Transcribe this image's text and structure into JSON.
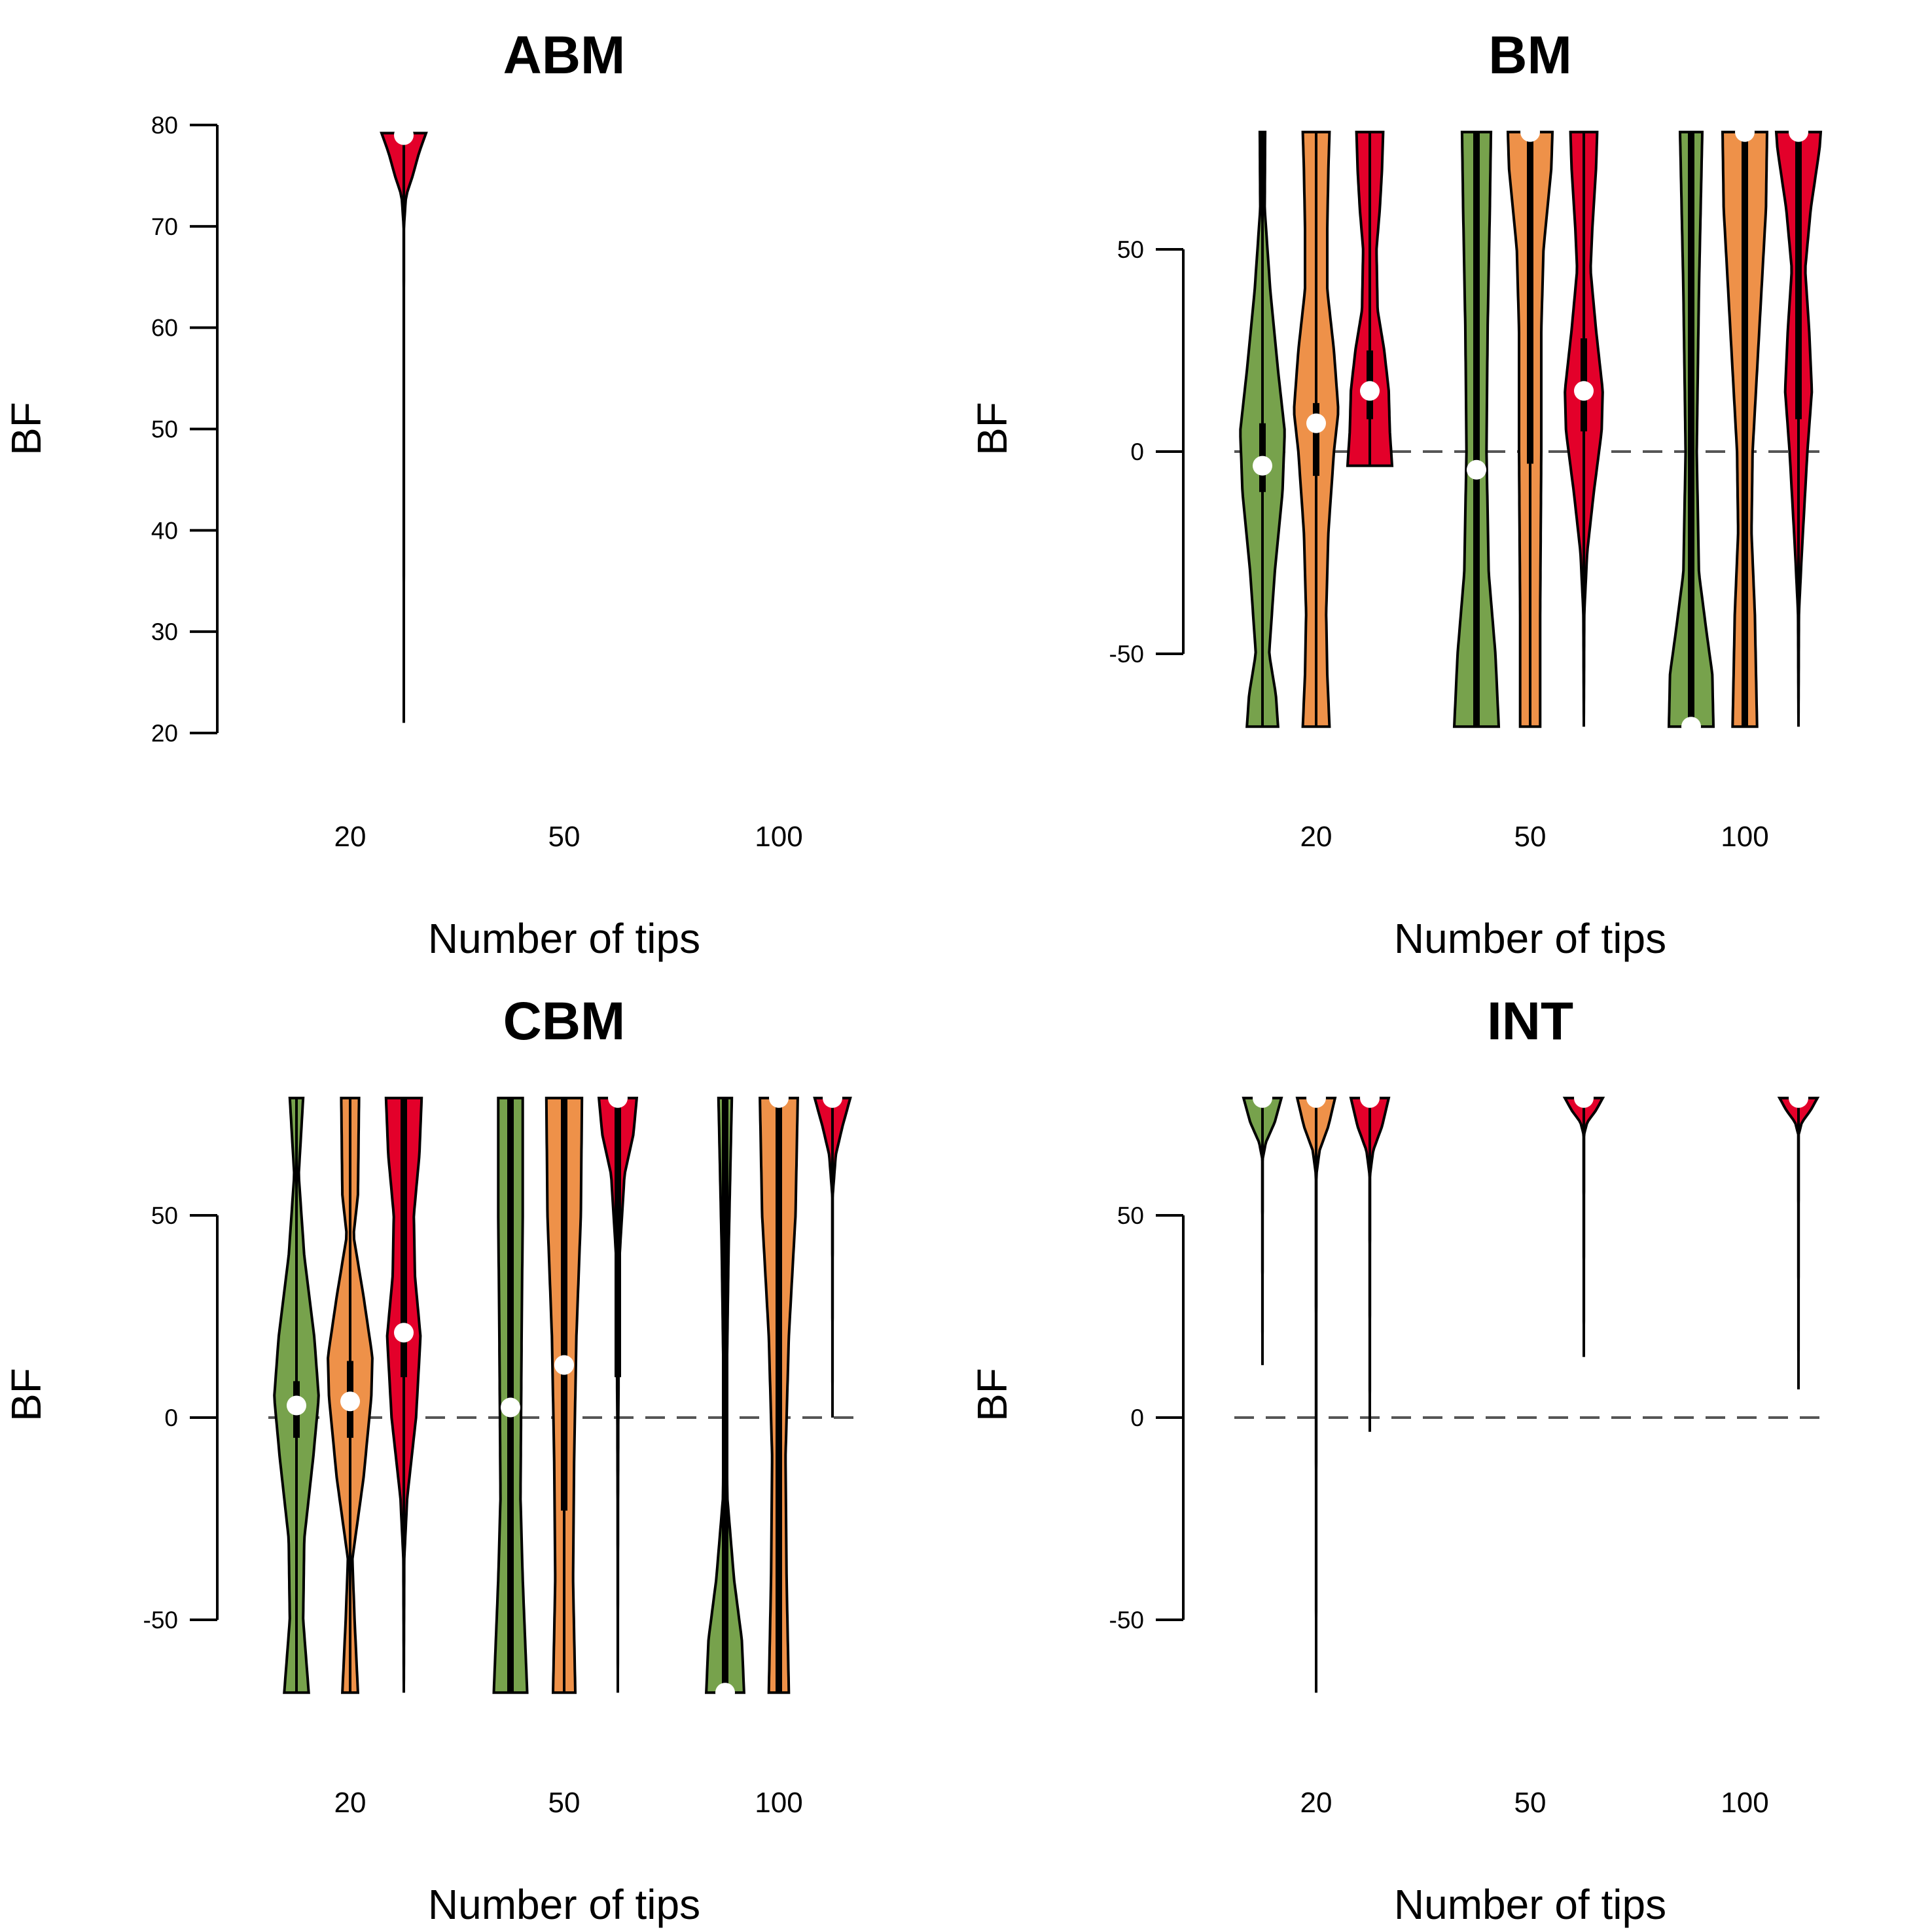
{
  "colors": {
    "tips_20": "#77a24c",
    "tips_50": "#ee9149",
    "tips_100": "#e3002a",
    "median_marker": "#ffffff",
    "reference_line": "#555555"
  },
  "chart_data": [
    {
      "type": "violin",
      "title": "ABM",
      "xlabel": "Number of tips",
      "ylabel": "BF",
      "categories": [
        "20",
        "50",
        "100"
      ],
      "ylim": [
        20,
        80
      ],
      "yticks": [
        "20",
        "30",
        "40",
        "50",
        "60",
        "70",
        "80"
      ],
      "reference_line": null,
      "groups": [
        {
          "category": "20",
          "color_key": "tips_100",
          "min": 21,
          "max": 79.2,
          "q1": 79.0,
          "q3": 79.2,
          "median": 79.0,
          "density": [
            [
              21,
              0
            ],
            [
              70,
              0.005
            ],
            [
              73,
              0.1
            ],
            [
              75,
              0.4
            ],
            [
              77,
              0.65
            ],
            [
              78,
              0.8
            ],
            [
              79.2,
              1.0
            ]
          ]
        }
      ]
    },
    {
      "type": "violin",
      "title": "BM",
      "xlabel": "Number of tips",
      "ylabel": "BF",
      "categories": [
        "20",
        "50",
        "100"
      ],
      "ylim": [
        -67,
        80
      ],
      "yticks": [
        "-50",
        "0",
        "50"
      ],
      "reference_line": 0,
      "groups": [
        {
          "category": "20",
          "color_key": "tips_20",
          "min": -68,
          "max": 79,
          "q1": -10,
          "q3": 7,
          "median": -3.5,
          "density": [
            [
              -68,
              0.7
            ],
            [
              -60,
              0.6
            ],
            [
              -50,
              0.3
            ],
            [
              -30,
              0.55
            ],
            [
              -10,
              0.9
            ],
            [
              5,
              1.0
            ],
            [
              20,
              0.7
            ],
            [
              40,
              0.35
            ],
            [
              60,
              0.1
            ],
            [
              79,
              0.12
            ]
          ]
        },
        {
          "category": "20",
          "color_key": "tips_50",
          "min": -68,
          "max": 79,
          "q1": -6,
          "q3": 12,
          "median": 7,
          "density": [
            [
              -68,
              0.6
            ],
            [
              -55,
              0.5
            ],
            [
              -40,
              0.45
            ],
            [
              -20,
              0.55
            ],
            [
              0,
              0.8
            ],
            [
              10,
              1.0
            ],
            [
              25,
              0.8
            ],
            [
              40,
              0.5
            ],
            [
              55,
              0.5
            ],
            [
              70,
              0.55
            ],
            [
              79,
              0.6
            ]
          ]
        },
        {
          "category": "20",
          "color_key": "tips_100",
          "min": -3.5,
          "max": 79,
          "q1": 8,
          "q3": 25,
          "median": 15,
          "density": [
            [
              -3.5,
              1.0
            ],
            [
              5,
              0.9
            ],
            [
              15,
              0.85
            ],
            [
              25,
              0.65
            ],
            [
              35,
              0.35
            ],
            [
              50,
              0.3
            ],
            [
              60,
              0.45
            ],
            [
              70,
              0.55
            ],
            [
              79,
              0.6
            ]
          ]
        },
        {
          "category": "50",
          "color_key": "tips_20",
          "min": -68,
          "max": 79,
          "q1": -68,
          "q3": 79,
          "median": -4.5,
          "density": [
            [
              -68,
              1.0
            ],
            [
              -50,
              0.85
            ],
            [
              -30,
              0.55
            ],
            [
              0,
              0.45
            ],
            [
              30,
              0.5
            ],
            [
              60,
              0.6
            ],
            [
              79,
              0.65
            ]
          ]
        },
        {
          "category": "50",
          "color_key": "tips_50",
          "min": -68,
          "max": 79,
          "q1": -3,
          "q3": 79,
          "median": 79,
          "density": [
            [
              -68,
              0.45
            ],
            [
              -40,
              0.45
            ],
            [
              0,
              0.5
            ],
            [
              30,
              0.5
            ],
            [
              50,
              0.6
            ],
            [
              70,
              0.95
            ],
            [
              79,
              1.0
            ]
          ]
        },
        {
          "category": "50",
          "color_key": "tips_100",
          "min": -68,
          "max": 79,
          "q1": 5,
          "q3": 28,
          "median": 15,
          "density": [
            [
              -68,
              0
            ],
            [
              -40,
              0.02
            ],
            [
              -25,
              0.15
            ],
            [
              -10,
              0.45
            ],
            [
              5,
              0.8
            ],
            [
              15,
              0.85
            ],
            [
              30,
              0.55
            ],
            [
              45,
              0.3
            ],
            [
              55,
              0.38
            ],
            [
              70,
              0.55
            ],
            [
              79,
              0.6
            ]
          ]
        },
        {
          "category": "100",
          "color_key": "tips_20",
          "min": -68,
          "max": 79,
          "q1": -68,
          "q3": 79,
          "median": -68,
          "density": [
            [
              -68,
              1.0
            ],
            [
              -55,
              0.95
            ],
            [
              -45,
              0.7
            ],
            [
              -30,
              0.35
            ],
            [
              0,
              0.25
            ],
            [
              40,
              0.35
            ],
            [
              79,
              0.5
            ]
          ]
        },
        {
          "category": "100",
          "color_key": "tips_50",
          "min": -68,
          "max": 79,
          "q1": -68,
          "q3": 79,
          "median": 79,
          "density": [
            [
              -68,
              0.55
            ],
            [
              -40,
              0.45
            ],
            [
              -20,
              0.3
            ],
            [
              0,
              0.35
            ],
            [
              30,
              0.65
            ],
            [
              60,
              0.95
            ],
            [
              79,
              1.0
            ]
          ]
        },
        {
          "category": "100",
          "color_key": "tips_100",
          "min": -68,
          "max": 79,
          "q1": 8,
          "q3": 79,
          "median": 79,
          "density": [
            [
              -68,
              0
            ],
            [
              -40,
              0.02
            ],
            [
              -25,
              0.15
            ],
            [
              0,
              0.4
            ],
            [
              15,
              0.6
            ],
            [
              30,
              0.48
            ],
            [
              45,
              0.3
            ],
            [
              60,
              0.55
            ],
            [
              75,
              0.95
            ],
            [
              79,
              1.0
            ]
          ]
        }
      ]
    },
    {
      "type": "violin",
      "title": "CBM",
      "xlabel": "Number of tips",
      "ylabel": "BF",
      "categories": [
        "20",
        "50",
        "100"
      ],
      "ylim": [
        -67,
        80
      ],
      "yticks": [
        "-50",
        "0",
        "50"
      ],
      "reference_line": 0,
      "groups": [
        {
          "category": "20",
          "color_key": "tips_20",
          "min": -68,
          "max": 79,
          "q1": -5,
          "q3": 9,
          "median": 3,
          "density": [
            [
              -68,
              0.55
            ],
            [
              -50,
              0.3
            ],
            [
              -30,
              0.35
            ],
            [
              -10,
              0.75
            ],
            [
              5,
              1.0
            ],
            [
              20,
              0.8
            ],
            [
              40,
              0.35
            ],
            [
              60,
              0.1
            ],
            [
              79,
              0.3
            ]
          ]
        },
        {
          "category": "20",
          "color_key": "tips_50",
          "min": -68,
          "max": 79,
          "q1": -5,
          "q3": 14,
          "median": 4,
          "density": [
            [
              -68,
              0.35
            ],
            [
              -50,
              0.2
            ],
            [
              -35,
              0.1
            ],
            [
              -15,
              0.6
            ],
            [
              5,
              0.95
            ],
            [
              15,
              1.0
            ],
            [
              30,
              0.6
            ],
            [
              45,
              0.15
            ],
            [
              55,
              0.35
            ],
            [
              79,
              0.4
            ]
          ]
        },
        {
          "category": "20",
          "color_key": "tips_100",
          "min": -68,
          "max": 79,
          "q1": 10,
          "q3": 79,
          "median": 21,
          "density": [
            [
              -68,
              0
            ],
            [
              -35,
              0.02
            ],
            [
              -20,
              0.15
            ],
            [
              0,
              0.55
            ],
            [
              20,
              0.75
            ],
            [
              35,
              0.5
            ],
            [
              50,
              0.45
            ],
            [
              65,
              0.7
            ],
            [
              79,
              0.8
            ]
          ]
        },
        {
          "category": "50",
          "color_key": "tips_20",
          "min": -68,
          "max": 79,
          "q1": -68,
          "q3": 79,
          "median": 2.5,
          "density": [
            [
              -68,
              0.75
            ],
            [
              -40,
              0.55
            ],
            [
              -20,
              0.45
            ],
            [
              20,
              0.5
            ],
            [
              50,
              0.55
            ],
            [
              79,
              0.55
            ]
          ]
        },
        {
          "category": "50",
          "color_key": "tips_50",
          "min": -68,
          "max": 79,
          "q1": -23,
          "q3": 79,
          "median": 13,
          "density": [
            [
              -68,
              0.5
            ],
            [
              -40,
              0.4
            ],
            [
              -10,
              0.45
            ],
            [
              20,
              0.55
            ],
            [
              50,
              0.75
            ],
            [
              79,
              0.8
            ]
          ]
        },
        {
          "category": "50",
          "color_key": "tips_100",
          "min": -68,
          "max": 79,
          "q1": 10,
          "q3": 79,
          "median": 79,
          "density": [
            [
              -68,
              0
            ],
            [
              -20,
              0.01
            ],
            [
              0,
              0.02
            ],
            [
              20,
              0.05
            ],
            [
              40,
              0.08
            ],
            [
              60,
              0.3
            ],
            [
              70,
              0.7
            ],
            [
              79,
              0.85
            ]
          ]
        },
        {
          "category": "100",
          "color_key": "tips_20",
          "min": -68,
          "max": 79,
          "q1": -68,
          "q3": 79,
          "median": -68,
          "density": [
            [
              -68,
              0.85
            ],
            [
              -55,
              0.75
            ],
            [
              -40,
              0.4
            ],
            [
              -20,
              0.1
            ],
            [
              0,
              0.05
            ],
            [
              40,
              0.15
            ],
            [
              79,
              0.3
            ]
          ]
        },
        {
          "category": "100",
          "color_key": "tips_50",
          "min": -68,
          "max": 79,
          "q1": -68,
          "q3": 79,
          "median": 79,
          "density": [
            [
              -68,
              0.45
            ],
            [
              -40,
              0.35
            ],
            [
              -10,
              0.3
            ],
            [
              20,
              0.45
            ],
            [
              50,
              0.75
            ],
            [
              79,
              0.85
            ]
          ]
        },
        {
          "category": "100",
          "color_key": "tips_100",
          "min": 0,
          "max": 79,
          "q1": 79,
          "q3": 79,
          "median": 79,
          "density": [
            [
              0,
              0
            ],
            [
              55,
              0.01
            ],
            [
              65,
              0.15
            ],
            [
              72,
              0.45
            ],
            [
              79,
              0.8
            ]
          ]
        }
      ]
    },
    {
      "type": "violin",
      "title": "INT",
      "xlabel": "Number of tips",
      "ylabel": "BF",
      "categories": [
        "20",
        "50",
        "100"
      ],
      "ylim": [
        -67,
        80
      ],
      "yticks": [
        "-50",
        "0",
        "50"
      ],
      "reference_line": 0,
      "groups": [
        {
          "category": "20",
          "color_key": "tips_20",
          "min": 13,
          "max": 79,
          "q1": 79,
          "q3": 79,
          "median": 79,
          "density": [
            [
              13,
              0
            ],
            [
              64,
              0.01
            ],
            [
              68,
              0.15
            ],
            [
              73,
              0.55
            ],
            [
              79,
              0.85
            ]
          ]
        },
        {
          "category": "20",
          "color_key": "tips_50",
          "min": -68,
          "max": 79,
          "q1": 79,
          "q3": 79,
          "median": 79,
          "density": [
            [
              -68,
              0
            ],
            [
              60,
              0.01
            ],
            [
              66,
              0.15
            ],
            [
              72,
              0.55
            ],
            [
              79,
              0.85
            ]
          ]
        },
        {
          "category": "20",
          "color_key": "tips_100",
          "min": -3.5,
          "max": 79,
          "q1": 79,
          "q3": 79,
          "median": 79,
          "density": [
            [
              -3.5,
              0
            ],
            [
              60,
              0.01
            ],
            [
              66,
              0.15
            ],
            [
              72,
              0.55
            ],
            [
              79,
              0.85
            ]
          ]
        },
        {
          "category": "50",
          "color_key": "tips_100",
          "min": 15,
          "max": 79,
          "q1": 79,
          "q3": 79,
          "median": 79,
          "density": [
            [
              15,
              0
            ],
            [
              70,
              0.01
            ],
            [
              73,
              0.15
            ],
            [
              76,
              0.55
            ],
            [
              79,
              0.85
            ]
          ]
        },
        {
          "category": "100",
          "color_key": "tips_100",
          "min": 7,
          "max": 79,
          "q1": 79,
          "q3": 79,
          "median": 79,
          "density": [
            [
              7,
              0
            ],
            [
              70,
              0.01
            ],
            [
              73,
              0.15
            ],
            [
              76,
              0.55
            ],
            [
              79,
              0.85
            ]
          ]
        }
      ]
    }
  ]
}
